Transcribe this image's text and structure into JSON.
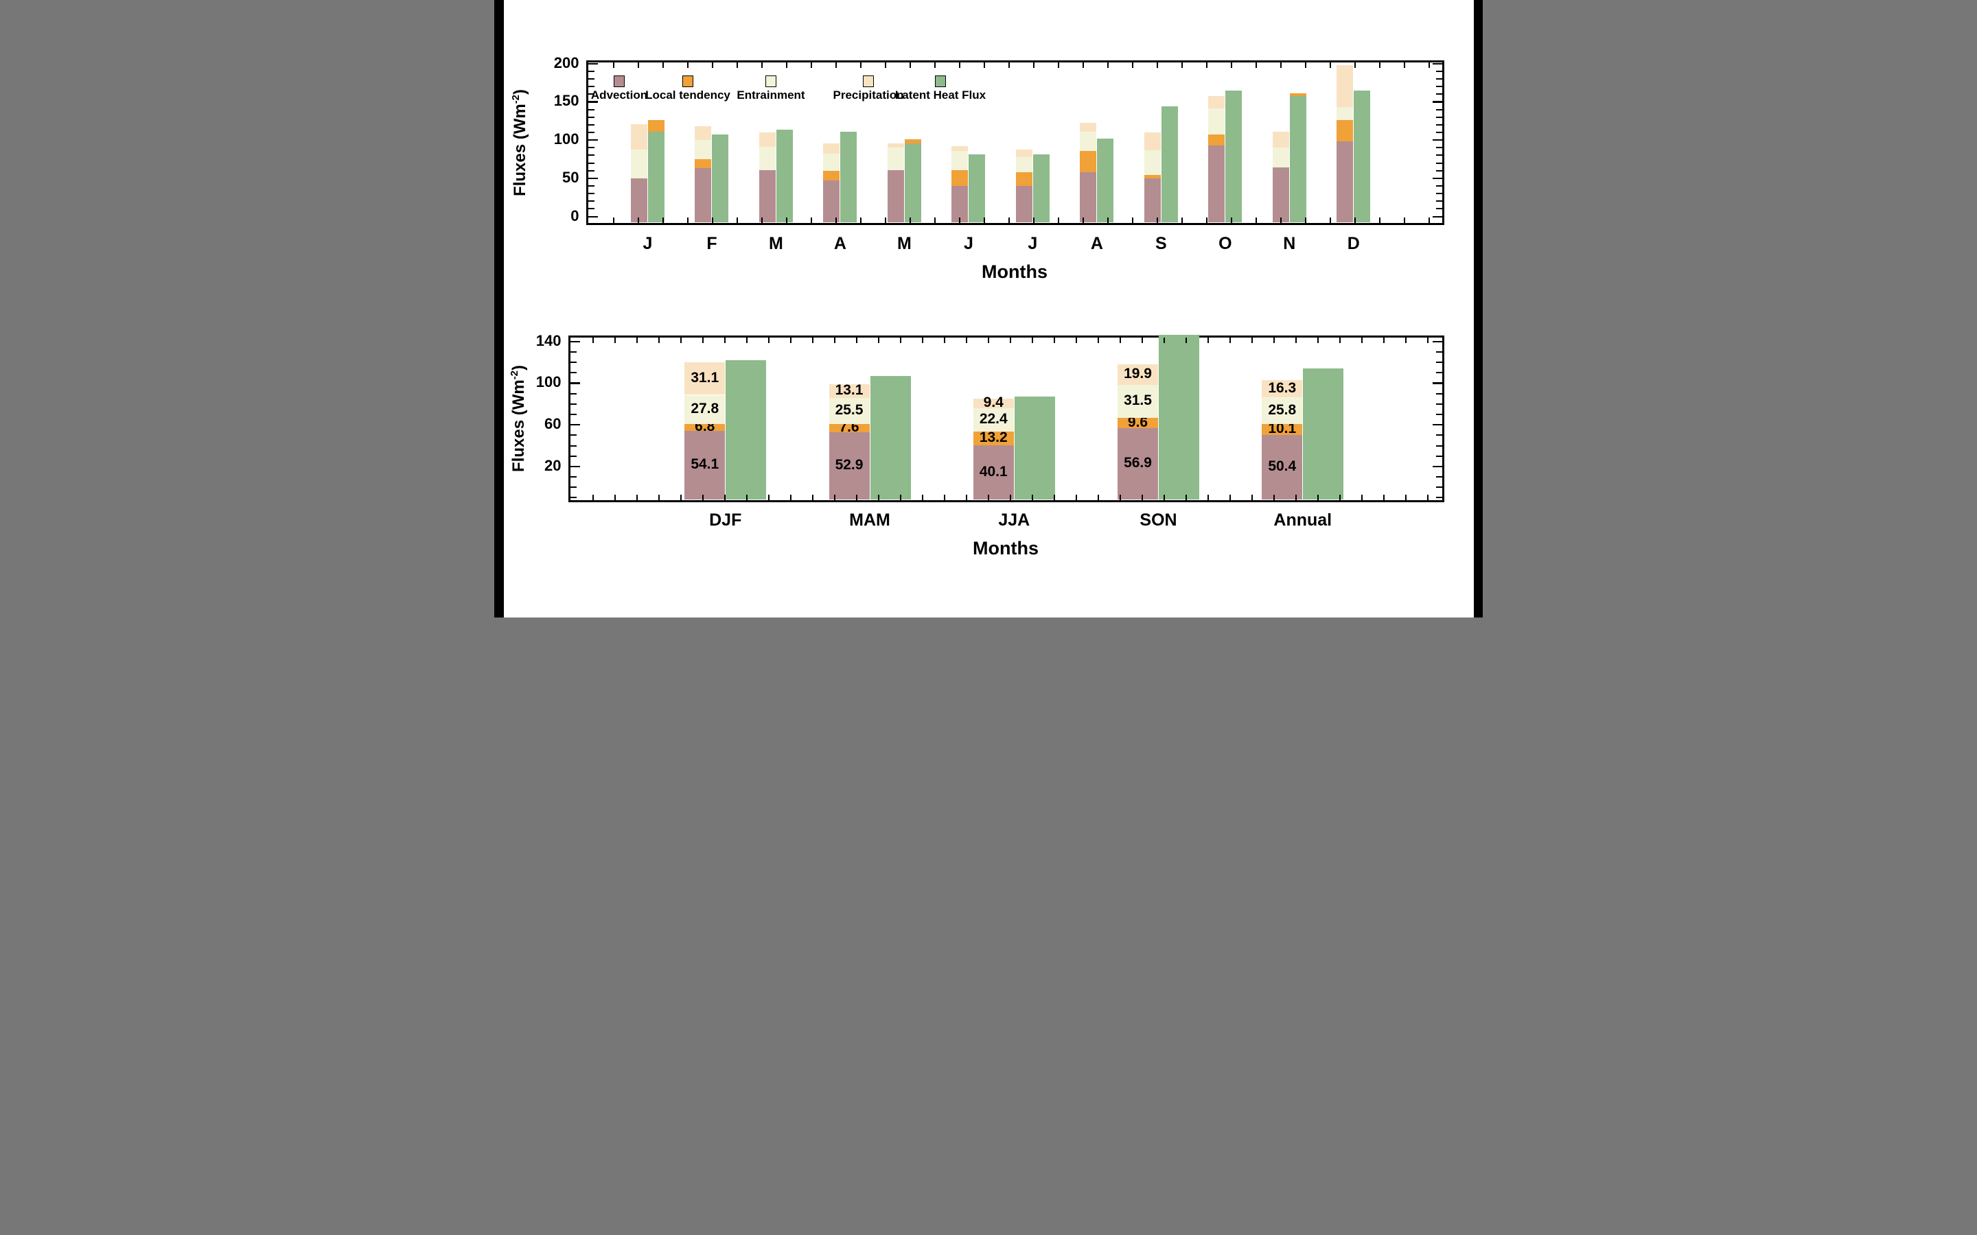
{
  "colors": {
    "advection": "#b48d91",
    "local_tendency": "#f0a138",
    "entrainment": "#f3f3da",
    "precipitation": "#f9e2c2",
    "latent_heat_flux": "#8eba8c",
    "frame": "#000000",
    "background": "#ffffff",
    "letterbox": "#000000"
  },
  "legend": {
    "items": [
      {
        "label": "Advection",
        "color": "advection"
      },
      {
        "label": "Local tendency",
        "color": "local_tendency"
      },
      {
        "label": "Entrainment",
        "color": "entrainment"
      },
      {
        "label": "Precipitation",
        "color": "precipitation"
      },
      {
        "label": "Latent Heat Flux",
        "color": "latent_heat_flux"
      }
    ]
  },
  "ylabel_display": {
    "prefix": "Fluxes (Wm",
    "superscript": "-2",
    "suffix": ")"
  },
  "chart_data": [
    {
      "type": "bar",
      "title": "",
      "xlabel": "Months",
      "ylabel": "Fluxes (Wm-2)",
      "categories": [
        "J",
        "F",
        "M",
        "A",
        "M",
        "J",
        "J",
        "A",
        "S",
        "O",
        "N",
        "D"
      ],
      "ylim": [
        0,
        200
      ],
      "yticks": [
        0,
        50,
        100,
        150,
        200
      ],
      "minor_tick_interval": 10,
      "grid": false,
      "legend_position": "inside-top-left",
      "bar_layout": "per month: one stacked budget bar (Advection + Local tendency + Entrainment + Precipitation) beside one Latent Heat Flux bar; in some months the Local tendency segment sits atop the Latent Heat Flux bar",
      "series": [
        {
          "name": "Advection",
          "color": "advection",
          "group": "stack",
          "values": [
            50,
            63,
            61,
            47,
            61,
            40,
            40,
            58,
            50,
            93,
            64,
            98
          ]
        },
        {
          "name": "Local tendency",
          "color": "local_tendency",
          "group": "stack",
          "values": [
            0,
            12,
            0,
            13,
            0,
            21,
            18,
            28,
            4,
            14,
            0,
            28
          ]
        },
        {
          "name": "Entrainment",
          "color": "entrainment",
          "group": "stack",
          "values": [
            38,
            25,
            30,
            22,
            29,
            25,
            20,
            25,
            33,
            34,
            26,
            17
          ]
        },
        {
          "name": "Precipitation",
          "color": "precipitation",
          "group": "stack",
          "values": [
            33,
            18,
            19,
            14,
            6,
            6,
            10,
            12,
            23,
            17,
            21,
            55
          ]
        },
        {
          "name": "Latent Heat Flux",
          "color": "latent_heat_flux",
          "group": "lhf",
          "values": [
            111,
            107,
            114,
            111,
            96,
            81,
            81,
            102,
            144,
            165,
            158,
            165
          ]
        },
        {
          "name": "Local tendency (atop Latent Heat Flux)",
          "color": "local_tendency",
          "group": "lhf_cap",
          "values": [
            15,
            0,
            0,
            0,
            5,
            0,
            0,
            0,
            0,
            0,
            3,
            0
          ]
        }
      ]
    },
    {
      "type": "bar",
      "title": "",
      "xlabel": "Months",
      "ylabel": "Fluxes (Wm-2)",
      "categories": [
        "DJF",
        "MAM",
        "JJA",
        "SON",
        "Annual"
      ],
      "ylim": [
        0,
        144
      ],
      "yticks": [
        20,
        60,
        100,
        140
      ],
      "minor_tick_interval": 10,
      "grid": false,
      "value_labels": true,
      "series": [
        {
          "name": "Advection",
          "color": "advection",
          "group": "stack",
          "values": [
            54.1,
            52.9,
            40.1,
            56.9,
            50.4
          ]
        },
        {
          "name": "Local tendency",
          "color": "local_tendency",
          "group": "stack",
          "values": [
            6.8,
            7.6,
            13.2,
            9.6,
            10.1
          ]
        },
        {
          "name": "Entrainment",
          "color": "entrainment",
          "group": "stack",
          "values": [
            27.8,
            25.5,
            22.4,
            31.5,
            25.8
          ]
        },
        {
          "name": "Precipitation",
          "color": "precipitation",
          "group": "stack",
          "values": [
            31.1,
            13.1,
            9.4,
            19.9,
            16.3
          ]
        },
        {
          "name": "Latent Heat Flux",
          "color": "latent_heat_flux",
          "group": "lhf",
          "values": [
            122,
            107,
            87,
            146,
            114
          ]
        },
        {
          "name": "Local tendency (atop Latent Heat Flux)",
          "color": "local_tendency",
          "group": "lhf_cap",
          "values": [
            0,
            0,
            0,
            0,
            0
          ]
        }
      ]
    }
  ]
}
